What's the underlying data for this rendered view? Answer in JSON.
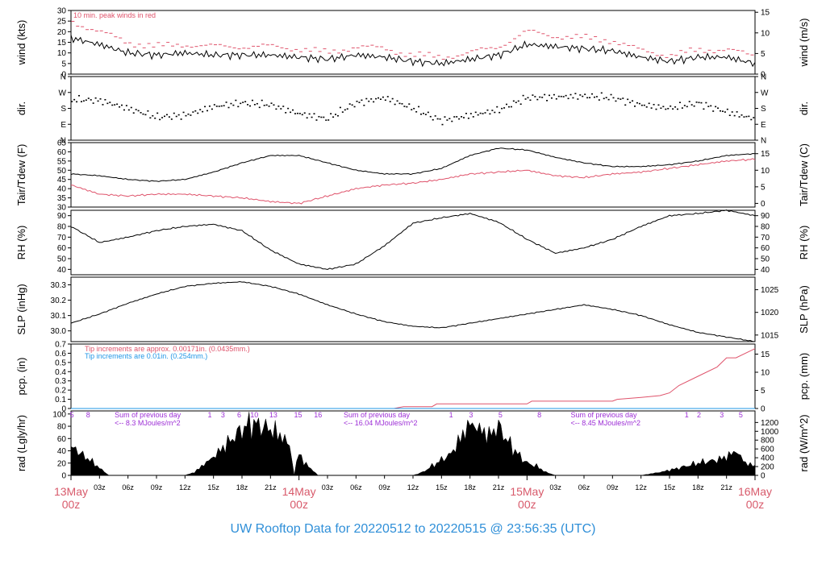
{
  "title": "UW Rooftop Data for 20220512  to  20220515 @ 23:56:35  (UTC)",
  "colors": {
    "axis": "#000000",
    "red": "#df536b",
    "blue": "#2297e6",
    "purple": "#9d2fd6",
    "title": "#2f8fd8",
    "day": "#d85a6b"
  },
  "chart_data": [
    {
      "type": "line",
      "panel": "wind",
      "ylabel_left": "wind (kts)",
      "ylabel_right": "wind (m/s)",
      "ylim": [
        0,
        30
      ],
      "left_ticks": [
        0,
        5,
        10,
        15,
        20,
        25,
        30
      ],
      "right_ticks_ms": [
        0,
        5,
        10,
        15
      ],
      "right_factor": 1.9438,
      "annotation": "10 min. peak winds in red",
      "series": [
        {
          "role": "mean",
          "color": "#000000",
          "x": [
            0,
            3,
            6,
            9,
            12,
            15,
            18,
            21,
            24,
            27,
            30,
            33,
            36,
            39,
            42,
            45,
            48,
            51,
            54,
            57,
            60,
            63,
            66,
            69,
            72
          ],
          "y": [
            17,
            14,
            10,
            9,
            10,
            9,
            9,
            9,
            8,
            7,
            9,
            8,
            6,
            5,
            7,
            9,
            14,
            13,
            12,
            11,
            8,
            6,
            8,
            8,
            5
          ]
        },
        {
          "role": "peak",
          "color": "#df536b",
          "x": [
            0,
            3,
            6,
            9,
            12,
            15,
            18,
            21,
            24,
            27,
            30,
            33,
            36,
            39,
            42,
            45,
            48,
            51,
            54,
            57,
            60,
            63,
            66,
            69,
            72
          ],
          "y": [
            25,
            20,
            15,
            13,
            14,
            13,
            13,
            13,
            12,
            10,
            13,
            12,
            9,
            8,
            10,
            13,
            20,
            18,
            17,
            16,
            11,
            9,
            11,
            12,
            8
          ]
        }
      ]
    },
    {
      "type": "scatter",
      "panel": "dir",
      "ylabel_left": "dir.",
      "ylabel_right": "dir.",
      "ticks": [
        "N",
        "W",
        "S",
        "E",
        "N"
      ],
      "x": [
        0,
        3,
        6,
        9,
        12,
        15,
        18,
        21,
        24,
        27,
        30,
        33,
        36,
        39,
        42,
        45,
        48,
        51,
        54,
        57,
        60,
        63,
        66,
        69,
        72
      ],
      "y": [
        230,
        225,
        180,
        130,
        140,
        190,
        210,
        200,
        150,
        120,
        210,
        240,
        180,
        110,
        140,
        170,
        240,
        245,
        250,
        240,
        200,
        180,
        210,
        160,
        120
      ]
    },
    {
      "type": "line",
      "panel": "temp",
      "ylabel_left": "Tair/Tdew (F)",
      "ylabel_right": "Tair/Tdew (C)",
      "ylim": [
        30,
        65
      ],
      "left_ticks": [
        30,
        35,
        40,
        45,
        50,
        55,
        60,
        65
      ],
      "right_ticks_c": [
        0,
        5,
        10,
        15
      ],
      "series": [
        {
          "name": "Tair",
          "color": "#000000",
          "x": [
            0,
            3,
            6,
            9,
            12,
            15,
            18,
            21,
            24,
            27,
            30,
            33,
            36,
            39,
            42,
            45,
            48,
            51,
            54,
            57,
            60,
            63,
            66,
            69,
            72
          ],
          "y": [
            48,
            47,
            45,
            44,
            45,
            49,
            54,
            58,
            58,
            54,
            50,
            48,
            48,
            51,
            58,
            62,
            61,
            57,
            54,
            52,
            52,
            53,
            55,
            58,
            59
          ]
        },
        {
          "name": "Tdew",
          "color": "#df536b",
          "x": [
            0,
            3,
            6,
            9,
            12,
            15,
            18,
            21,
            24,
            27,
            30,
            33,
            36,
            39,
            42,
            45,
            48,
            51,
            54,
            57,
            60,
            63,
            66,
            69,
            72
          ],
          "y": [
            42,
            37,
            36,
            37,
            37,
            36,
            35,
            33,
            32,
            36,
            40,
            42,
            43,
            45,
            48,
            49,
            50,
            47,
            46,
            48,
            49,
            51,
            53,
            55,
            56
          ]
        }
      ]
    },
    {
      "type": "line",
      "panel": "rh",
      "ylabel_left": "RH (%)",
      "ylabel_right": "RH (%)",
      "ylim": [
        35,
        95
      ],
      "left_ticks": [
        40,
        50,
        60,
        70,
        80,
        90
      ],
      "series": [
        {
          "name": "RH",
          "color": "#000000",
          "x": [
            0,
            3,
            6,
            9,
            12,
            15,
            18,
            21,
            24,
            27,
            30,
            33,
            36,
            39,
            42,
            45,
            48,
            51,
            54,
            57,
            60,
            63,
            66,
            69,
            72
          ],
          "y": [
            80,
            65,
            70,
            76,
            80,
            82,
            76,
            58,
            45,
            40,
            45,
            62,
            83,
            88,
            92,
            84,
            68,
            55,
            60,
            68,
            80,
            90,
            92,
            95,
            90
          ]
        }
      ]
    },
    {
      "type": "line",
      "panel": "slp",
      "ylabel_left": "SLP (inHg)",
      "ylabel_right": "SLP (hPa)",
      "ylim": [
        29.93,
        30.35
      ],
      "left_ticks": [
        30.0,
        30.1,
        30.2,
        30.3
      ],
      "right_ticks_hpa": [
        1015,
        1020,
        1025
      ],
      "series": [
        {
          "name": "SLP",
          "color": "#000000",
          "x": [
            0,
            3,
            6,
            9,
            12,
            15,
            18,
            21,
            24,
            27,
            30,
            33,
            36,
            39,
            42,
            45,
            48,
            51,
            54,
            57,
            60,
            63,
            66,
            69,
            72
          ],
          "y": [
            30.05,
            30.11,
            30.18,
            30.24,
            30.29,
            30.31,
            30.32,
            30.29,
            30.24,
            30.17,
            30.11,
            30.06,
            30.03,
            30.02,
            30.05,
            30.08,
            30.11,
            30.14,
            30.17,
            30.14,
            30.1,
            30.04,
            29.99,
            29.96,
            29.93
          ]
        }
      ]
    },
    {
      "type": "area",
      "panel": "pcp",
      "ylabel_left": "pcp. (in)",
      "ylabel_right": "pcp. (mm)",
      "ylim": [
        0,
        0.7
      ],
      "left_ticks": [
        0,
        0.1,
        0.2,
        0.3,
        0.4,
        0.5,
        0.6,
        0.7
      ],
      "right_ticks_mm": [
        0,
        5,
        10,
        15
      ],
      "annotations": [
        "Tip increments are approx. 0.00171in. (0.0435mm.)",
        "Tip increments are 0.01in. (0.254mm.)"
      ],
      "series": [
        {
          "name": "pcp-red",
          "color": "#df536b",
          "x": [
            0,
            34,
            35,
            38,
            38.5,
            48,
            48.5,
            57,
            57.5,
            60,
            62,
            63,
            64,
            66,
            68,
            69,
            70,
            72
          ],
          "y": [
            0,
            0,
            0.02,
            0.02,
            0.05,
            0.05,
            0.08,
            0.08,
            0.1,
            0.12,
            0.14,
            0.17,
            0.25,
            0.35,
            0.45,
            0.55,
            0.55,
            0.65
          ]
        },
        {
          "name": "pcp-blue",
          "color": "#2297e6",
          "x": [
            0,
            72
          ],
          "y": [
            0,
            0
          ]
        }
      ]
    },
    {
      "type": "area",
      "panel": "rad",
      "ylabel_left": "rad (Lgly/hr)",
      "ylabel_right": "rad (W/m^2)",
      "ylim": [
        0,
        105
      ],
      "left_ticks": [
        0,
        10,
        20,
        30,
        40,
        50,
        60,
        70,
        80,
        90,
        100
      ],
      "right_ticks_wm2": [
        0,
        200,
        400,
        600,
        800,
        1000,
        1200
      ],
      "day_notes": [
        "Sum of previous day",
        "<-- 8.3 MJoules/m^2",
        "Sum of previous day",
        "<-- 16.04 MJoules/m^2",
        "Sum of previous day",
        "<-- 8.45 MJoules/m^2"
      ],
      "top_marks": [
        {
          "x": 0.1,
          "t": "5"
        },
        {
          "x": 1.8,
          "t": "8"
        },
        {
          "x": 14.6,
          "t": "1"
        },
        {
          "x": 16.0,
          "t": "3"
        },
        {
          "x": 17.7,
          "t": "6"
        },
        {
          "x": 19.3,
          "t": "10"
        },
        {
          "x": 21.3,
          "t": "13"
        },
        {
          "x": 23.9,
          "t": "15"
        },
        {
          "x": 26.0,
          "t": "16"
        },
        {
          "x": 40.0,
          "t": "1"
        },
        {
          "x": 42.1,
          "t": "3"
        },
        {
          "x": 45.2,
          "t": "5"
        },
        {
          "x": 49.3,
          "t": "8"
        },
        {
          "x": 64.8,
          "t": "1"
        },
        {
          "x": 66.1,
          "t": "2"
        },
        {
          "x": 68.5,
          "t": "3"
        },
        {
          "x": 70.5,
          "t": "5"
        }
      ],
      "x": [
        0,
        0.5,
        1,
        2,
        3,
        4,
        12,
        13,
        14,
        15,
        16,
        17,
        18,
        19,
        20,
        21,
        22,
        23,
        23.5,
        24,
        24.5,
        25,
        26,
        36,
        37,
        38,
        39,
        40,
        41,
        42,
        43,
        44,
        45,
        46,
        47,
        48,
        49,
        50,
        51,
        60,
        62,
        64,
        66,
        68,
        69,
        70,
        71,
        72
      ],
      "y": [
        40,
        45,
        35,
        25,
        12,
        0,
        0,
        5,
        18,
        30,
        45,
        60,
        75,
        85,
        80,
        75,
        65,
        50,
        0,
        40,
        20,
        15,
        0,
        0,
        5,
        15,
        25,
        35,
        60,
        85,
        75,
        65,
        80,
        55,
        35,
        20,
        15,
        5,
        0,
        0,
        5,
        12,
        20,
        25,
        30,
        40,
        20,
        15
      ]
    },
    {
      "type": "axis",
      "panel": "time",
      "hour_ticks": [
        {
          "h": 3,
          "t": "03z"
        },
        {
          "h": 6,
          "t": "06z"
        },
        {
          "h": 9,
          "t": "09z"
        },
        {
          "h": 12,
          "t": "12z"
        },
        {
          "h": 15,
          "t": "15z"
        },
        {
          "h": 18,
          "t": "18z"
        },
        {
          "h": 21,
          "t": "21z"
        },
        {
          "h": 27,
          "t": "03z"
        },
        {
          "h": 30,
          "t": "06z"
        },
        {
          "h": 33,
          "t": "09z"
        },
        {
          "h": 36,
          "t": "12z"
        },
        {
          "h": 39,
          "t": "15z"
        },
        {
          "h": 42,
          "t": "18z"
        },
        {
          "h": 45,
          "t": "21z"
        },
        {
          "h": 51,
          "t": "03z"
        },
        {
          "h": 54,
          "t": "06z"
        },
        {
          "h": 57,
          "t": "09z"
        },
        {
          "h": 60,
          "t": "12z"
        },
        {
          "h": 63,
          "t": "15z"
        },
        {
          "h": 66,
          "t": "18z"
        },
        {
          "h": 69,
          "t": "21z"
        }
      ],
      "day_ticks": [
        {
          "h": 0,
          "d": "13May",
          "z": "00z"
        },
        {
          "h": 24,
          "d": "14May",
          "z": "00z"
        },
        {
          "h": 48,
          "d": "15May",
          "z": "00z"
        },
        {
          "h": 72,
          "d": "16May",
          "z": "00z"
        }
      ]
    }
  ]
}
